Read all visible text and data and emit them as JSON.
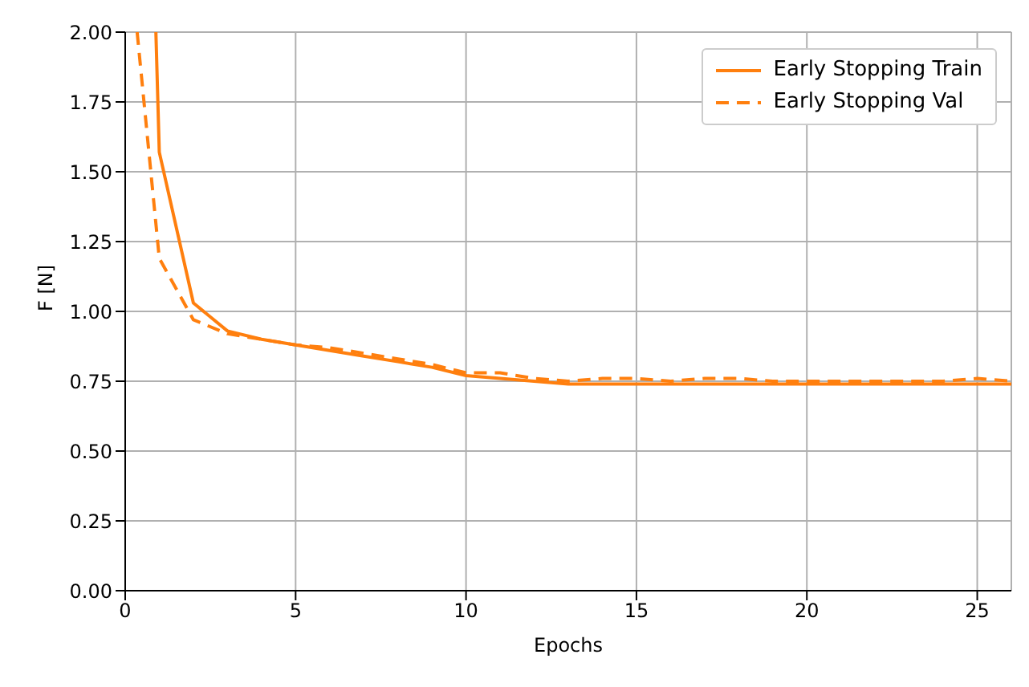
{
  "chart_data": {
    "type": "line",
    "xlabel": "Epochs",
    "ylabel": "F [N]",
    "xlim": [
      0,
      26
    ],
    "xticks": [
      0,
      5,
      10,
      15,
      20,
      25
    ],
    "ylim": [
      0,
      2
    ],
    "yticks": [
      {
        "value": 0,
        "label": "0.00"
      },
      {
        "value": 0.25,
        "label": "0.25"
      },
      {
        "value": 0.5,
        "label": "0.50"
      },
      {
        "value": 0.75,
        "label": "0.75"
      },
      {
        "value": 1,
        "label": "1.00"
      },
      {
        "value": 1.25,
        "label": "1.25"
      },
      {
        "value": 1.5,
        "label": "1.50"
      },
      {
        "value": 1.75,
        "label": "1.75"
      },
      {
        "value": 2,
        "label": "2.00"
      }
    ],
    "grid": true,
    "legend": "top right",
    "marker": "none",
    "series": [
      {
        "name": "Early Stopping Train",
        "color": "#ff7f0e",
        "line_style": "solid",
        "x": [
          0.9,
          1,
          2,
          3,
          4,
          5,
          6,
          7,
          8,
          9,
          10,
          11,
          12,
          13,
          14,
          15,
          16,
          17,
          18,
          19,
          20,
          21,
          22,
          23,
          24,
          25,
          26
        ],
        "values": [
          2,
          1.57,
          1.03,
          0.93,
          0.9,
          0.88,
          0.86,
          0.84,
          0.82,
          0.8,
          0.77,
          0.76,
          0.75,
          0.74,
          0.74,
          0.74,
          0.74,
          0.74,
          0.74,
          0.74,
          0.74,
          0.74,
          0.74,
          0.74,
          0.74,
          0.74,
          0.74
        ]
      },
      {
        "name": "Early Stopping Val",
        "color": "#ff7f0e",
        "line_style": "dashed",
        "x": [
          0.35,
          1,
          2,
          3,
          4,
          5,
          6,
          7,
          8,
          9,
          10,
          11,
          12,
          13,
          14,
          15,
          16,
          17,
          18,
          19,
          20,
          21,
          22,
          23,
          24,
          25,
          26
        ],
        "values": [
          2,
          1.19,
          0.97,
          0.92,
          0.9,
          0.88,
          0.87,
          0.85,
          0.83,
          0.81,
          0.78,
          0.78,
          0.76,
          0.75,
          0.76,
          0.76,
          0.75,
          0.76,
          0.76,
          0.75,
          0.75,
          0.75,
          0.75,
          0.75,
          0.75,
          0.76,
          0.75
        ]
      }
    ]
  }
}
